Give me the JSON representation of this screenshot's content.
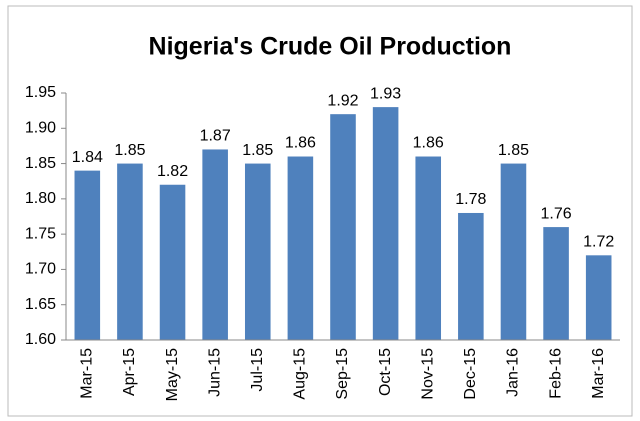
{
  "chart_data": {
    "type": "bar",
    "title": "Nigeria's Crude Oil Production",
    "categories": [
      "Mar-15",
      "Apr-15",
      "May-15",
      "Jun-15",
      "Jul-15",
      "Aug-15",
      "Sep-15",
      "Oct-15",
      "Nov-15",
      "Dec-15",
      "Jan-16",
      "Feb-16",
      "Mar-16"
    ],
    "values": [
      1.84,
      1.85,
      1.82,
      1.87,
      1.85,
      1.86,
      1.92,
      1.93,
      1.86,
      1.78,
      1.85,
      1.76,
      1.72
    ],
    "color": "#4f81bd",
    "ylim": [
      1.6,
      1.95
    ],
    "yticks": [
      {
        "value": 1.6,
        "label": "1.60"
      },
      1.65,
      {
        "value": 1.7,
        "label": "1.70"
      },
      1.75,
      {
        "value": 1.8,
        "label": "1.80"
      },
      1.85,
      {
        "value": 1.9,
        "label": "1.90"
      },
      1.95
    ],
    "grid": false
  }
}
